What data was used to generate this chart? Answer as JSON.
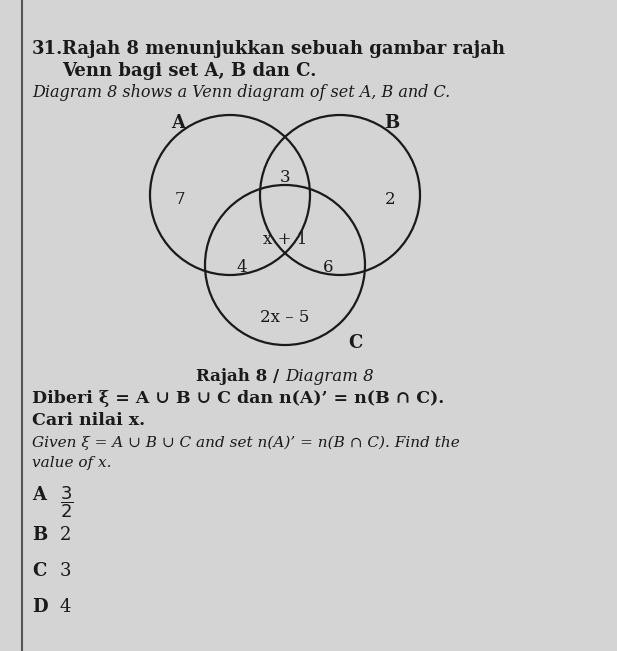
{
  "bg_color": "#c8c8c8",
  "title_number": "31.",
  "title_malay_line1": "Rajah 8 menunjukkan sebuah gambar rajah",
  "title_malay_line2": "Venn bagi set A, B dan C.",
  "title_english": "Diagram 8 shows a Venn diagram of set A, B and C.",
  "diagram_caption_bold": "Rajah 8 / ",
  "diagram_caption_italic": "Diagram 8",
  "label_A": "A",
  "label_B": "B",
  "label_C": "C",
  "region_only_A": "7",
  "region_AB": "3",
  "region_only_B": "2",
  "region_ABC": "x + 1",
  "region_AC": "4",
  "region_BC": "6",
  "region_only_C": "2x – 5",
  "q_malay_line1": "Diberi ξ = A ∪ B ∪ C dan n(A)’ = n(B ∩ C).",
  "q_malay_line2": "Cari nilai x.",
  "q_english_line1": "Given ξ = A ∪ B ∪ C and set n(A)’ = n(B ∩ C). Find the",
  "q_english_line2": "value of x.",
  "ans_A_letter": "A",
  "ans_B_letter": "B",
  "ans_C_letter": "C",
  "ans_D_letter": "D",
  "ans_B": "2",
  "ans_C": "3",
  "ans_D": "4",
  "circle_color": "#1a1a1a",
  "circle_lw": 1.6,
  "text_color": "#1a1a1a"
}
